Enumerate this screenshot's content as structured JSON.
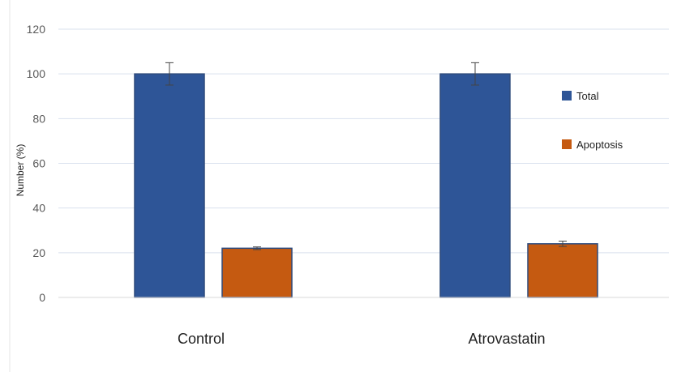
{
  "chart_data": {
    "type": "bar",
    "categories": [
      "Control",
      "Atrovastatin"
    ],
    "series": [
      {
        "name": "Total",
        "values": [
          100,
          100
        ],
        "errors": [
          5,
          5
        ],
        "color": "#2e5597"
      },
      {
        "name": "Apoptosis",
        "values": [
          22,
          24
        ],
        "errors": [
          0.6,
          1.2
        ],
        "color": "#c55a11"
      }
    ],
    "ylabel": "Number (%)",
    "xlabel": "",
    "title": "",
    "ylim": [
      0,
      120
    ],
    "yticks": [
      0,
      20,
      40,
      60,
      80,
      100,
      120
    ],
    "grid": true,
    "legend_position": "right"
  }
}
